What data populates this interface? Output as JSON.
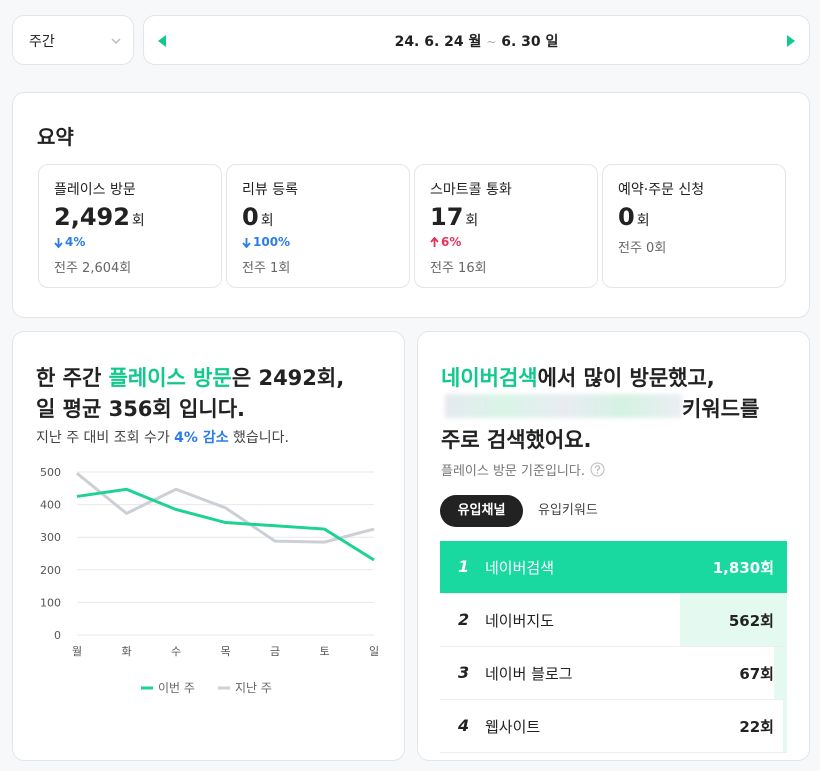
{
  "period_select": {
    "value": "주간"
  },
  "date_range": {
    "start": "24. 6. 24 월",
    "separator": "~",
    "end": "6. 30 일"
  },
  "summary": {
    "title": "요약",
    "cards": [
      {
        "label": "플레이스 방문",
        "value": "2,492",
        "unit": "회",
        "change": "4%",
        "previous": "전주 2,604회"
      },
      {
        "label": "리뷰 등록",
        "value": "0",
        "unit": "회",
        "change": "100%",
        "previous": "전주 1회"
      },
      {
        "label": "스마트콜 통화",
        "value": "17",
        "unit": "회",
        "change": "6%",
        "previous": "전주 16회"
      },
      {
        "label": "예약·주문 신청",
        "value": "0",
        "unit": "회",
        "previous": "전주 0회"
      }
    ]
  },
  "visit_panel": {
    "headline": [
      "한 주간 ",
      "플레이스 방문",
      "은 2492회,",
      "일 평균 356회 입니다."
    ],
    "subtext": [
      "지난 주 대비 조회 수가 ",
      "4% 감소",
      " 했습니다."
    ],
    "chart": {
      "type": "line",
      "categories": [
        "월",
        "화",
        "수",
        "목",
        "금",
        "토",
        "일"
      ],
      "ylim": [
        0,
        500
      ],
      "yticks": [
        0,
        100,
        200,
        300,
        400,
        500
      ],
      "grid": true,
      "series": [
        {
          "name": "이번 주",
          "color": "#1ed391",
          "values": [
            425,
            447,
            385,
            345,
            335,
            325,
            230
          ]
        },
        {
          "name": "지난 주",
          "color": "#ccd0d6",
          "values": [
            496,
            373,
            447,
            390,
            288,
            285,
            325
          ]
        }
      ]
    }
  },
  "channel_panel": {
    "headline": [
      "네이버검색",
      "에서 많이 방문했고,",
      "키워드를",
      "주로 검색했어요."
    ],
    "note": "플레이스 방문 기준입니다.",
    "tabs": [
      "유입채널",
      "유입키워드"
    ],
    "rows": [
      {
        "rank": 1,
        "name": "네이버검색",
        "value": 1830,
        "value_label": "1,830회"
      },
      {
        "rank": 2,
        "name": "네이버지도",
        "value": 562,
        "value_label": "562회"
      },
      {
        "rank": 3,
        "name": "네이버 블로그",
        "value": 67,
        "value_label": "67회"
      },
      {
        "rank": 4,
        "name": "웹사이트",
        "value": 22,
        "value_label": "22회"
      }
    ]
  }
}
